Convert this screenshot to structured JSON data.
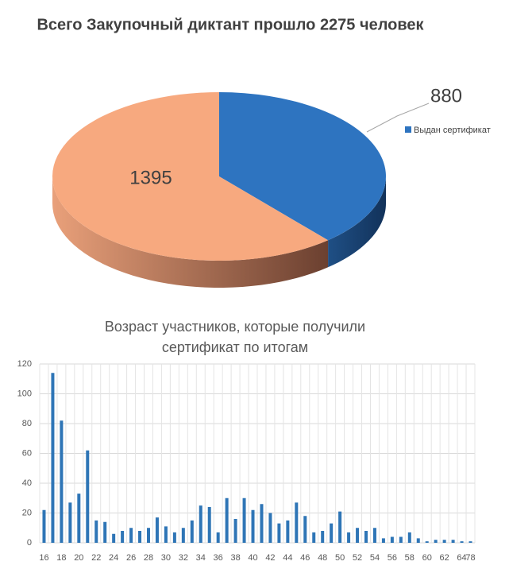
{
  "chart_data": [
    {
      "type": "pie3d",
      "title": "Всего Закупочный диктант прошло 2275 человек",
      "categories": [
        "Выдан сертификат",
        null
      ],
      "values": [
        880,
        1395
      ],
      "colors": [
        "#2e74c0",
        "#f7a97f"
      ],
      "legend": "right"
    },
    {
      "type": "bar",
      "title": "Возраст участников, которые получили сертификат по итогам",
      "categories": [
        "16",
        null,
        "18",
        null,
        "20",
        null,
        "22",
        null,
        "24",
        null,
        "26",
        null,
        "28",
        null,
        "30",
        null,
        "32",
        null,
        "34",
        null,
        "36",
        null,
        "38",
        null,
        "40",
        null,
        "42",
        null,
        "44",
        null,
        "46",
        null,
        "48",
        null,
        "50",
        null,
        "52",
        null,
        "54",
        null,
        "56",
        null,
        "58",
        null,
        "60",
        null,
        "62",
        null,
        "64",
        "78"
      ],
      "values": [
        22,
        114,
        82,
        27,
        33,
        62,
        15,
        14,
        6,
        8,
        10,
        8,
        10,
        17,
        11,
        7,
        10,
        15,
        25,
        24,
        7,
        30,
        16,
        30,
        22,
        26,
        20,
        13,
        15,
        27,
        18,
        7,
        8,
        13,
        21,
        7,
        10,
        8,
        10,
        3,
        4,
        4,
        7,
        3,
        1,
        2,
        2,
        2,
        1,
        1
      ],
      "color": "#2e75b6",
      "ylim": [
        0,
        120
      ],
      "yticks": [
        0,
        20,
        40,
        60,
        80,
        100,
        120
      ],
      "grid": true
    }
  ]
}
